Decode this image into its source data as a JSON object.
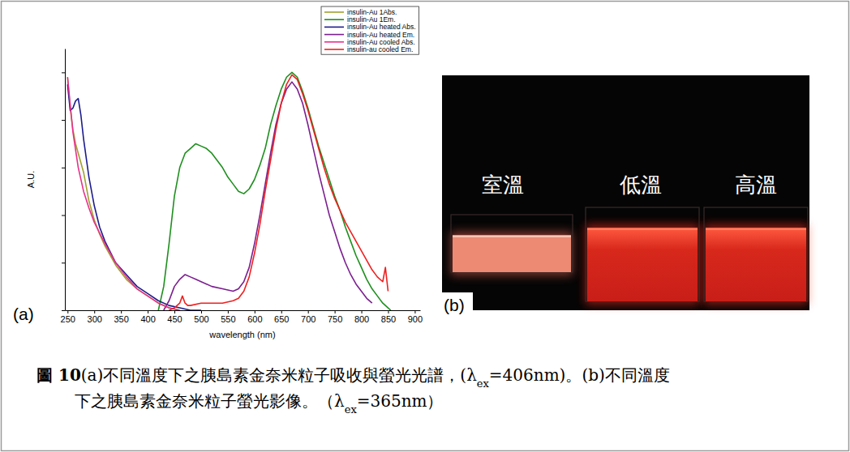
{
  "chart_data": {
    "type": "line",
    "panel_label": "(a)",
    "x_label": "wavelength (nm)",
    "y_label": "A.U.",
    "xlim": [
      245,
      910
    ],
    "xticks": [
      250,
      300,
      350,
      400,
      450,
      500,
      550,
      600,
      650,
      700,
      750,
      800,
      850,
      900
    ],
    "ylim": [
      0,
      1.1
    ],
    "yticks": [
      0,
      0.2,
      0.4,
      0.6,
      0.8,
      1
    ],
    "tick_labels": "x",
    "legend": "upper right",
    "series": [
      {
        "name": "insulin-Au 1Abs.",
        "color": "#a0a030",
        "x": [
          250,
          255,
          260,
          265,
          270,
          275,
          280,
          285,
          290,
          300,
          310,
          320,
          340,
          360,
          380,
          400,
          420,
          440,
          460
        ],
        "values": [
          0.98,
          0.85,
          0.76,
          0.7,
          0.66,
          0.62,
          0.58,
          0.52,
          0.46,
          0.38,
          0.32,
          0.27,
          0.19,
          0.13,
          0.09,
          0.06,
          0.03,
          0.01,
          0.0
        ]
      },
      {
        "name": "insulin-Au 1Em.",
        "color": "#1f8f1f",
        "x": [
          420,
          430,
          440,
          450,
          460,
          470,
          480,
          490,
          500,
          510,
          520,
          530,
          540,
          550,
          560,
          570,
          580,
          590,
          600,
          610,
          620,
          630,
          640,
          650,
          660,
          670,
          680,
          690,
          700,
          710,
          720,
          730,
          740,
          750,
          760,
          770,
          780,
          790,
          800,
          810,
          820,
          830,
          840,
          850,
          855
        ],
        "values": [
          0.0,
          0.1,
          0.28,
          0.48,
          0.6,
          0.66,
          0.68,
          0.7,
          0.69,
          0.68,
          0.66,
          0.63,
          0.6,
          0.56,
          0.53,
          0.5,
          0.49,
          0.51,
          0.55,
          0.61,
          0.68,
          0.78,
          0.86,
          0.93,
          0.98,
          1.0,
          0.98,
          0.92,
          0.85,
          0.77,
          0.69,
          0.62,
          0.55,
          0.48,
          0.42,
          0.35,
          0.29,
          0.23,
          0.18,
          0.13,
          0.09,
          0.06,
          0.03,
          0.01,
          0.0
        ]
      },
      {
        "name": "insulin-Au heated Abs.",
        "color": "#1c1c8c",
        "x": [
          250,
          255,
          260,
          265,
          270,
          275,
          280,
          290,
          300,
          310,
          320,
          340,
          360,
          380,
          400,
          420,
          440,
          460,
          480,
          500
        ],
        "values": [
          0.95,
          0.84,
          0.85,
          0.88,
          0.89,
          0.82,
          0.72,
          0.56,
          0.44,
          0.35,
          0.29,
          0.2,
          0.15,
          0.1,
          0.07,
          0.04,
          0.02,
          0.01,
          0.0,
          0.0
        ]
      },
      {
        "name": "insulin-Au heated Em.",
        "color": "#7b1f8f",
        "x": [
          430,
          440,
          450,
          460,
          470,
          480,
          490,
          500,
          520,
          540,
          560,
          570,
          580,
          590,
          600,
          610,
          620,
          630,
          640,
          650,
          660,
          670,
          680,
          690,
          700,
          710,
          720,
          730,
          740,
          750,
          760,
          770,
          780,
          790,
          800,
          810,
          820
        ],
        "values": [
          0.0,
          0.04,
          0.1,
          0.13,
          0.15,
          0.14,
          0.13,
          0.12,
          0.1,
          0.09,
          0.08,
          0.09,
          0.12,
          0.18,
          0.28,
          0.4,
          0.53,
          0.66,
          0.78,
          0.87,
          0.93,
          0.96,
          0.93,
          0.87,
          0.78,
          0.68,
          0.58,
          0.49,
          0.4,
          0.33,
          0.26,
          0.2,
          0.15,
          0.11,
          0.08,
          0.05,
          0.03
        ]
      },
      {
        "name": "insulin-Au cooled Abs.",
        "color": "#e8308c",
        "x": [
          250,
          260,
          270,
          280,
          290,
          300,
          320,
          340,
          360,
          380,
          400,
          420,
          440,
          460
        ],
        "values": [
          0.98,
          0.75,
          0.6,
          0.5,
          0.43,
          0.37,
          0.28,
          0.2,
          0.14,
          0.09,
          0.06,
          0.03,
          0.01,
          0.0
        ]
      },
      {
        "name": "insulin-au cooled Em.",
        "color": "#ee2020",
        "x": [
          440,
          450,
          460,
          465,
          470,
          475,
          480,
          500,
          520,
          540,
          560,
          570,
          580,
          590,
          600,
          610,
          620,
          630,
          640,
          650,
          660,
          670,
          680,
          690,
          700,
          710,
          720,
          730,
          740,
          750,
          760,
          770,
          780,
          790,
          800,
          810,
          820,
          830,
          840,
          845,
          850
        ],
        "values": [
          0.0,
          0.01,
          0.03,
          0.06,
          0.03,
          0.02,
          0.02,
          0.03,
          0.03,
          0.03,
          0.04,
          0.05,
          0.08,
          0.14,
          0.24,
          0.36,
          0.5,
          0.63,
          0.76,
          0.87,
          0.95,
          0.99,
          0.97,
          0.91,
          0.84,
          0.76,
          0.68,
          0.6,
          0.53,
          0.47,
          0.42,
          0.37,
          0.33,
          0.29,
          0.25,
          0.21,
          0.17,
          0.14,
          0.12,
          0.18,
          0.08
        ]
      }
    ]
  },
  "photo": {
    "panel_label": "(b)",
    "samples": [
      "室溫",
      "低溫",
      "高溫"
    ]
  },
  "caption": {
    "label": "圖 10",
    "lines": [
      [
        {
          "text": "(a)不同溫度下之胰島素金奈米粒子吸收與螢光光譜，(λ"
        },
        {
          "text": "ex",
          "sub": true
        },
        {
          "text": "=406nm)。(b)不同溫度"
        }
      ],
      [
        {
          "text": "下之胰島素金奈米粒子螢光影像。（λ"
        },
        {
          "text": "ex",
          "sub": true
        },
        {
          "text": "=365nm）"
        }
      ]
    ]
  }
}
